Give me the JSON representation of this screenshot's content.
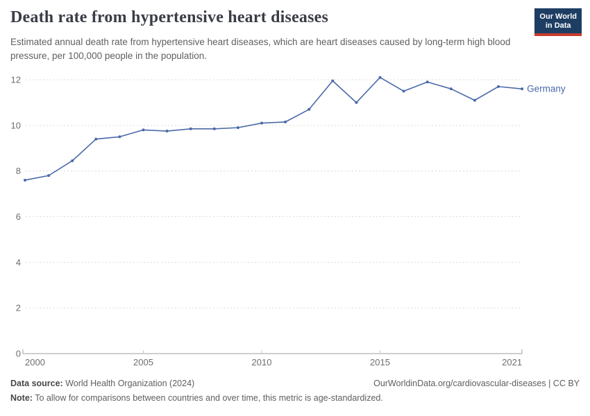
{
  "header": {
    "title": "Death rate from hypertensive heart diseases",
    "subtitle": "Estimated annual death rate from hypertensive heart diseases, which are heart diseases caused by long-term high blood pressure, per 100,000 people in the population.",
    "logo": {
      "line1": "Our World",
      "line2": "in Data"
    }
  },
  "chart_data": {
    "type": "line",
    "title": "Death rate from hypertensive heart diseases",
    "xlabel": "",
    "ylabel": "",
    "x": [
      2000,
      2001,
      2002,
      2003,
      2004,
      2005,
      2006,
      2007,
      2008,
      2009,
      2010,
      2011,
      2012,
      2013,
      2014,
      2015,
      2016,
      2017,
      2018,
      2019,
      2020,
      2021
    ],
    "series": [
      {
        "name": "Germany",
        "color": "#4a69a8",
        "values": [
          7.6,
          7.8,
          8.45,
          9.4,
          9.5,
          9.8,
          9.75,
          9.85,
          9.85,
          9.9,
          10.1,
          10.15,
          10.7,
          11.95,
          11.0,
          12.1,
          11.5,
          11.9,
          11.6,
          11.1,
          11.7,
          11.6
        ]
      }
    ],
    "ylim": [
      0,
      12
    ],
    "yticks": [
      0,
      2,
      4,
      6,
      8,
      10,
      12
    ],
    "xticks": [
      2000,
      2005,
      2010,
      2015,
      2021
    ],
    "grid": "horizontal-dashed",
    "legend_position": "line-end-label"
  },
  "footer": {
    "datasource_label": "Data source:",
    "datasource_text": "World Health Organization (2024)",
    "note_label": "Note:",
    "note_text": "To allow for comparisons between countries and over time, this metric is age-standardized.",
    "link_text": "OurWorldinData.org/cardiovascular-diseases | CC BY"
  },
  "colors": {
    "line": "#4a69a8",
    "title": "#3a3d46",
    "subtitle": "#5f5f5f",
    "axis_text": "#6e6e6e",
    "gridline": "#dcdcdc",
    "axis_line": "#9c9c9c",
    "tick": "#c8c8c8",
    "logo_bg": "#1d3d63",
    "logo_red": "#c73a2e"
  }
}
